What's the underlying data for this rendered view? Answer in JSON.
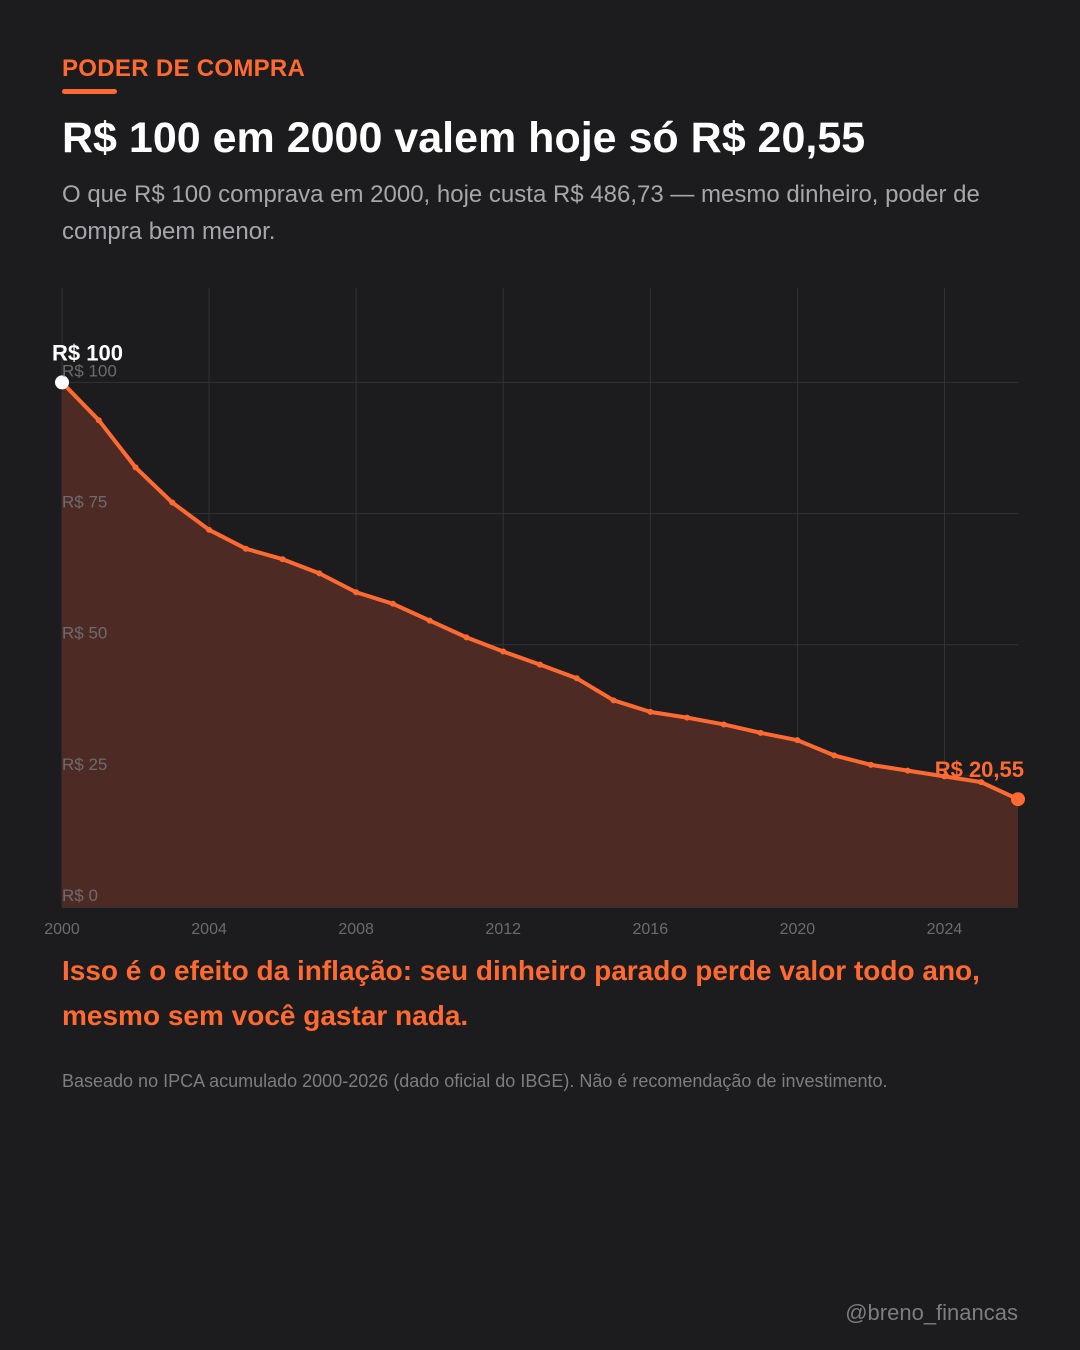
{
  "header": {
    "eyebrow": "PODER DE COMPRA",
    "title": "R$ 100 em 2000 valem hoje só R$ 20,55",
    "subtitle": "O que R$ 100 comprava em 2000, hoje custa R$ 486,73 — mesmo dinheiro, poder de compra bem menor."
  },
  "callout": "Isso é o efeito da inflação: seu dinheiro parado perde valor todo ano, mesmo sem você gastar nada.",
  "footnote": "Baseado no IPCA acumulado 2000-2026 (dado oficial do IBGE). Não é recomendação de investimento.",
  "handle": "@breno_financas",
  "colors": {
    "background": "#1c1c1e",
    "accent": "#ff6a33",
    "area_fill": "#4d2b24",
    "grid": "#333336",
    "muted_text": "#6b6b70",
    "start_marker": "#ffffff"
  },
  "chart_data": {
    "type": "area",
    "x": [
      2000,
      2001,
      2002,
      2003,
      2004,
      2005,
      2006,
      2007,
      2008,
      2009,
      2010,
      2011,
      2012,
      2013,
      2014,
      2015,
      2016,
      2017,
      2018,
      2019,
      2020,
      2021,
      2022,
      2023,
      2024,
      2025,
      2026
    ],
    "values": [
      100,
      92.8,
      83.8,
      77.1,
      71.9,
      68.3,
      66.3,
      63.6,
      60.0,
      57.8,
      54.6,
      51.4,
      48.7,
      46.2,
      43.6,
      39.4,
      37.2,
      36.1,
      34.8,
      33.2,
      31.8,
      28.9,
      27.1,
      26.0,
      24.9,
      23.8,
      20.55
    ],
    "x_ticks": [
      "2000",
      "2004",
      "2008",
      "2012",
      "2016",
      "2020",
      "2024"
    ],
    "x_tick_values": [
      2000,
      2004,
      2008,
      2012,
      2016,
      2020,
      2024
    ],
    "y_ticks": [
      "R$ 0",
      "R$ 25",
      "R$ 50",
      "R$ 75",
      "R$ 100"
    ],
    "y_tick_values": [
      0,
      25,
      50,
      75,
      100
    ],
    "xlim": [
      2000,
      2026
    ],
    "ylim": [
      0,
      118
    ],
    "grid": true,
    "start_label": "R$ 100",
    "end_label": "R$ 20,55"
  }
}
